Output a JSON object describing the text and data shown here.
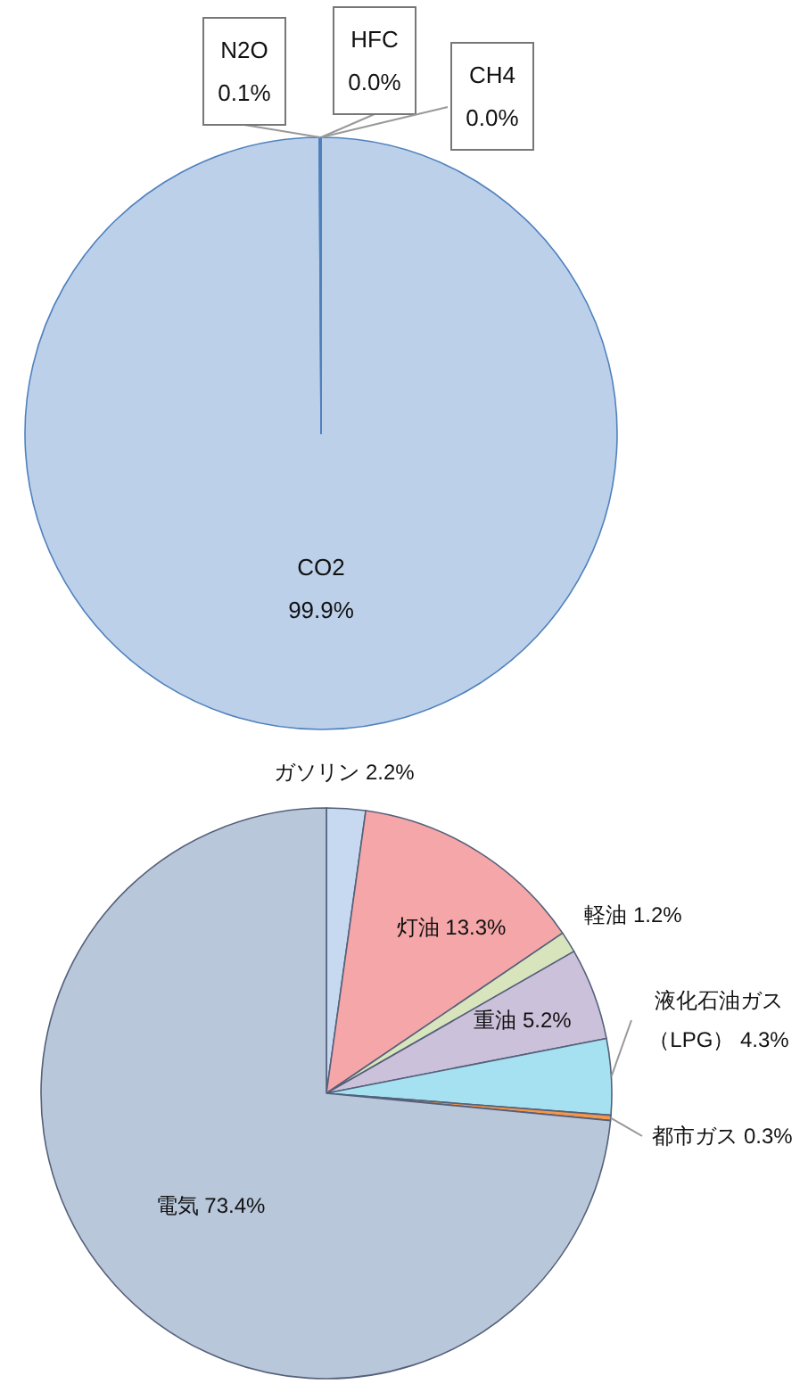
{
  "chart_data": [
    {
      "type": "pie",
      "categories": [
        "CO2",
        "N2O",
        "HFC",
        "CH4"
      ],
      "values": [
        99.9,
        0.1,
        0.0,
        0.0
      ],
      "value_labels": [
        "99.9%",
        "0.1%",
        "0.0%",
        "0.0%"
      ],
      "colors": [
        "#bcd0ea",
        "#8064a2",
        "#9bbb59",
        "#c0504d"
      ]
    },
    {
      "type": "pie",
      "categories": [
        "ガソリン",
        "灯油",
        "軽油",
        "重油",
        "液化石油ガス（LPG）",
        "都市ガス",
        "電気"
      ],
      "values": [
        2.2,
        13.3,
        1.2,
        5.2,
        4.3,
        0.3,
        73.4
      ],
      "value_labels": [
        "2.2%",
        "13.3%",
        "1.2%",
        "5.2%",
        "4.3%",
        "0.3%",
        "73.4%"
      ],
      "colors": [
        "#c6d9f1",
        "#f4a6a8",
        "#d7e4bc",
        "#ccc1da",
        "#a5e1f0",
        "#f79646",
        "#b9c7db"
      ]
    }
  ]
}
